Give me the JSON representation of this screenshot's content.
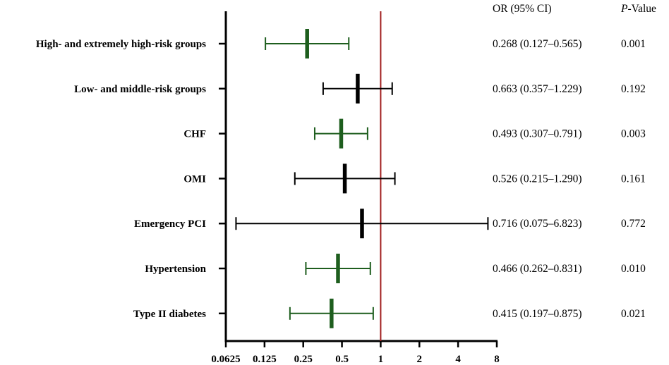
{
  "chart_data": {
    "type": "forest",
    "x_scale": "log2",
    "xlim": [
      0.0625,
      8
    ],
    "x_ticks": [
      "0.0625",
      "0.125",
      "0.25",
      "0.5",
      "1",
      "2",
      "4",
      "8"
    ],
    "reference_line": 1,
    "column_headers": {
      "or_ci": "OR  (95%  CI)",
      "p_italic": "P",
      "p_suffix": "-Value"
    },
    "rows": [
      {
        "label": "High- and extremely high-risk groups",
        "or": 0.268,
        "lo": 0.127,
        "hi": 0.565,
        "or_ci_text": "0.268 (0.127–0.565)",
        "p": "0.001",
        "significant": true
      },
      {
        "label": "Low- and middle-risk groups",
        "or": 0.663,
        "lo": 0.357,
        "hi": 1.229,
        "or_ci_text": "0.663 (0.357–1.229)",
        "p": "0.192",
        "significant": false
      },
      {
        "label": "CHF",
        "or": 0.493,
        "lo": 0.307,
        "hi": 0.791,
        "or_ci_text": "0.493 (0.307–0.791)",
        "p": "0.003",
        "significant": true
      },
      {
        "label": "OMI",
        "or": 0.526,
        "lo": 0.215,
        "hi": 1.29,
        "or_ci_text": "0.526 (0.215–1.290)",
        "p": "0.161",
        "significant": false
      },
      {
        "label": "Emergency PCI",
        "or": 0.716,
        "lo": 0.075,
        "hi": 6.823,
        "or_ci_text": "0.716 (0.075–6.823)",
        "p": "0.772",
        "significant": false
      },
      {
        "label": "Hypertension",
        "or": 0.466,
        "lo": 0.262,
        "hi": 0.831,
        "or_ci_text": "0.466 (0.262–0.831)",
        "p": "0.010",
        "significant": true
      },
      {
        "label": "Type II diabetes",
        "or": 0.415,
        "lo": 0.197,
        "hi": 0.875,
        "or_ci_text": "0.415 (0.197–0.875)",
        "p": "0.021",
        "significant": true
      }
    ],
    "colors": {
      "significant": "#1e5e1e",
      "non_significant": "#000000",
      "reference": "#a01c1c",
      "axis": "#000000"
    }
  }
}
